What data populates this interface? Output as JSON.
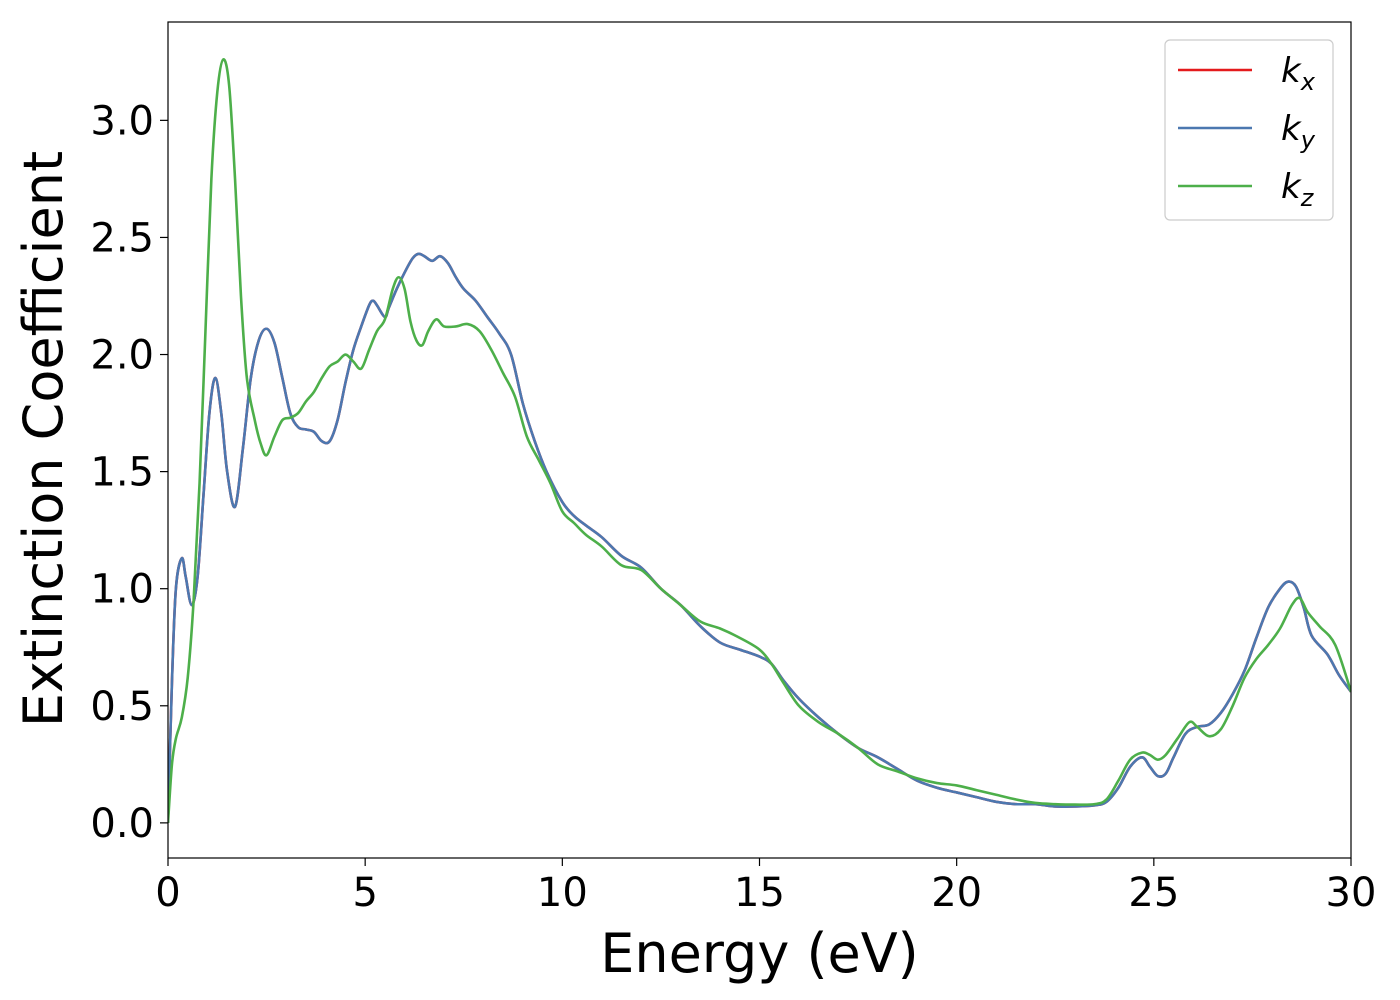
{
  "chart_data": {
    "type": "line",
    "xlabel": "Energy (eV)",
    "ylabel": "Extinction Coefficient",
    "xlim": [
      0,
      30
    ],
    "ylim": [
      -0.15,
      3.42
    ],
    "xticks": [
      0,
      5,
      10,
      15,
      20,
      25,
      30
    ],
    "xtick_labels": [
      "0",
      "5",
      "10",
      "15",
      "20",
      "25",
      "30"
    ],
    "yticks": [
      0.0,
      0.5,
      1.0,
      1.5,
      2.0,
      2.5,
      3.0
    ],
    "ytick_labels": [
      "0.0",
      "0.5",
      "1.0",
      "1.5",
      "2.0",
      "2.5",
      "3.0"
    ],
    "grid": false,
    "legend_position": "top-right",
    "series": [
      {
        "name": "k",
        "sub": "x",
        "color": "#e41a1c",
        "points": [
          [
            0,
            0
          ],
          [
            0.1,
            0.6
          ],
          [
            0.2,
            1.0
          ],
          [
            0.35,
            1.13
          ],
          [
            0.45,
            1.05
          ],
          [
            0.6,
            0.93
          ],
          [
            0.75,
            1.05
          ],
          [
            0.9,
            1.4
          ],
          [
            1.05,
            1.75
          ],
          [
            1.2,
            1.9
          ],
          [
            1.35,
            1.75
          ],
          [
            1.5,
            1.5
          ],
          [
            1.7,
            1.35
          ],
          [
            1.9,
            1.6
          ],
          [
            2.1,
            1.9
          ],
          [
            2.3,
            2.06
          ],
          [
            2.5,
            2.11
          ],
          [
            2.7,
            2.05
          ],
          [
            2.9,
            1.9
          ],
          [
            3.1,
            1.75
          ],
          [
            3.3,
            1.69
          ],
          [
            3.5,
            1.68
          ],
          [
            3.7,
            1.67
          ],
          [
            3.9,
            1.63
          ],
          [
            4.1,
            1.63
          ],
          [
            4.3,
            1.72
          ],
          [
            4.5,
            1.88
          ],
          [
            4.7,
            2.02
          ],
          [
            4.9,
            2.12
          ],
          [
            5.1,
            2.21
          ],
          [
            5.2,
            2.23
          ],
          [
            5.3,
            2.21
          ],
          [
            5.5,
            2.16
          ],
          [
            5.6,
            2.2
          ],
          [
            5.8,
            2.28
          ],
          [
            6.0,
            2.35
          ],
          [
            6.2,
            2.41
          ],
          [
            6.35,
            2.43
          ],
          [
            6.5,
            2.42
          ],
          [
            6.7,
            2.4
          ],
          [
            6.9,
            2.42
          ],
          [
            7.1,
            2.39
          ],
          [
            7.3,
            2.33
          ],
          [
            7.5,
            2.28
          ],
          [
            7.8,
            2.23
          ],
          [
            8.1,
            2.16
          ],
          [
            8.4,
            2.09
          ],
          [
            8.7,
            2.0
          ],
          [
            9.0,
            1.79
          ],
          [
            9.3,
            1.63
          ],
          [
            9.6,
            1.5
          ],
          [
            10.0,
            1.37
          ],
          [
            10.3,
            1.31
          ],
          [
            10.6,
            1.27
          ],
          [
            11.0,
            1.22
          ],
          [
            11.5,
            1.14
          ],
          [
            12.0,
            1.09
          ],
          [
            12.5,
            1.0
          ],
          [
            13.0,
            0.93
          ],
          [
            13.5,
            0.84
          ],
          [
            14.0,
            0.77
          ],
          [
            14.5,
            0.74
          ],
          [
            15.0,
            0.71
          ],
          [
            15.3,
            0.68
          ],
          [
            15.6,
            0.61
          ],
          [
            16.0,
            0.53
          ],
          [
            16.5,
            0.45
          ],
          [
            17.0,
            0.38
          ],
          [
            17.5,
            0.32
          ],
          [
            18.0,
            0.28
          ],
          [
            18.5,
            0.23
          ],
          [
            19.0,
            0.18
          ],
          [
            19.5,
            0.15
          ],
          [
            20.0,
            0.13
          ],
          [
            20.5,
            0.11
          ],
          [
            21.0,
            0.09
          ],
          [
            21.5,
            0.08
          ],
          [
            22.0,
            0.08
          ],
          [
            22.5,
            0.07
          ],
          [
            23.0,
            0.07
          ],
          [
            23.5,
            0.075
          ],
          [
            23.8,
            0.09
          ],
          [
            24.1,
            0.15
          ],
          [
            24.4,
            0.24
          ],
          [
            24.7,
            0.28
          ],
          [
            24.9,
            0.24
          ],
          [
            25.1,
            0.2
          ],
          [
            25.3,
            0.21
          ],
          [
            25.5,
            0.28
          ],
          [
            25.8,
            0.38
          ],
          [
            26.1,
            0.41
          ],
          [
            26.4,
            0.42
          ],
          [
            26.7,
            0.47
          ],
          [
            27.0,
            0.55
          ],
          [
            27.3,
            0.65
          ],
          [
            27.6,
            0.79
          ],
          [
            27.9,
            0.92
          ],
          [
            28.2,
            1.0
          ],
          [
            28.4,
            1.03
          ],
          [
            28.6,
            1.01
          ],
          [
            28.8,
            0.92
          ],
          [
            29.0,
            0.8
          ],
          [
            29.4,
            0.72
          ],
          [
            29.7,
            0.63
          ],
          [
            30.0,
            0.56
          ]
        ]
      },
      {
        "name": "k",
        "sub": "y",
        "color": "#4c78b0",
        "points": [
          [
            0,
            0
          ],
          [
            0.1,
            0.6
          ],
          [
            0.2,
            1.0
          ],
          [
            0.35,
            1.13
          ],
          [
            0.45,
            1.05
          ],
          [
            0.6,
            0.93
          ],
          [
            0.75,
            1.05
          ],
          [
            0.9,
            1.4
          ],
          [
            1.05,
            1.75
          ],
          [
            1.2,
            1.9
          ],
          [
            1.35,
            1.75
          ],
          [
            1.5,
            1.5
          ],
          [
            1.7,
            1.35
          ],
          [
            1.9,
            1.6
          ],
          [
            2.1,
            1.9
          ],
          [
            2.3,
            2.06
          ],
          [
            2.5,
            2.11
          ],
          [
            2.7,
            2.05
          ],
          [
            2.9,
            1.9
          ],
          [
            3.1,
            1.75
          ],
          [
            3.3,
            1.69
          ],
          [
            3.5,
            1.68
          ],
          [
            3.7,
            1.67
          ],
          [
            3.9,
            1.63
          ],
          [
            4.1,
            1.63
          ],
          [
            4.3,
            1.72
          ],
          [
            4.5,
            1.88
          ],
          [
            4.7,
            2.02
          ],
          [
            4.9,
            2.12
          ],
          [
            5.1,
            2.21
          ],
          [
            5.2,
            2.23
          ],
          [
            5.3,
            2.21
          ],
          [
            5.5,
            2.16
          ],
          [
            5.6,
            2.2
          ],
          [
            5.8,
            2.28
          ],
          [
            6.0,
            2.35
          ],
          [
            6.2,
            2.41
          ],
          [
            6.35,
            2.43
          ],
          [
            6.5,
            2.42
          ],
          [
            6.7,
            2.4
          ],
          [
            6.9,
            2.42
          ],
          [
            7.1,
            2.39
          ],
          [
            7.3,
            2.33
          ],
          [
            7.5,
            2.28
          ],
          [
            7.8,
            2.23
          ],
          [
            8.1,
            2.16
          ],
          [
            8.4,
            2.09
          ],
          [
            8.7,
            2.0
          ],
          [
            9.0,
            1.79
          ],
          [
            9.3,
            1.63
          ],
          [
            9.6,
            1.5
          ],
          [
            10.0,
            1.37
          ],
          [
            10.3,
            1.31
          ],
          [
            10.6,
            1.27
          ],
          [
            11.0,
            1.22
          ],
          [
            11.5,
            1.14
          ],
          [
            12.0,
            1.09
          ],
          [
            12.5,
            1.0
          ],
          [
            13.0,
            0.93
          ],
          [
            13.5,
            0.84
          ],
          [
            14.0,
            0.77
          ],
          [
            14.5,
            0.74
          ],
          [
            15.0,
            0.71
          ],
          [
            15.3,
            0.68
          ],
          [
            15.6,
            0.61
          ],
          [
            16.0,
            0.53
          ],
          [
            16.5,
            0.45
          ],
          [
            17.0,
            0.38
          ],
          [
            17.5,
            0.32
          ],
          [
            18.0,
            0.28
          ],
          [
            18.5,
            0.23
          ],
          [
            19.0,
            0.18
          ],
          [
            19.5,
            0.15
          ],
          [
            20.0,
            0.13
          ],
          [
            20.5,
            0.11
          ],
          [
            21.0,
            0.09
          ],
          [
            21.5,
            0.08
          ],
          [
            22.0,
            0.08
          ],
          [
            22.5,
            0.07
          ],
          [
            23.0,
            0.07
          ],
          [
            23.5,
            0.075
          ],
          [
            23.8,
            0.09
          ],
          [
            24.1,
            0.15
          ],
          [
            24.4,
            0.24
          ],
          [
            24.7,
            0.28
          ],
          [
            24.9,
            0.24
          ],
          [
            25.1,
            0.2
          ],
          [
            25.3,
            0.21
          ],
          [
            25.5,
            0.28
          ],
          [
            25.8,
            0.38
          ],
          [
            26.1,
            0.41
          ],
          [
            26.4,
            0.42
          ],
          [
            26.7,
            0.47
          ],
          [
            27.0,
            0.55
          ],
          [
            27.3,
            0.65
          ],
          [
            27.6,
            0.79
          ],
          [
            27.9,
            0.92
          ],
          [
            28.2,
            1.0
          ],
          [
            28.4,
            1.03
          ],
          [
            28.6,
            1.01
          ],
          [
            28.8,
            0.92
          ],
          [
            29.0,
            0.8
          ],
          [
            29.4,
            0.72
          ],
          [
            29.7,
            0.63
          ],
          [
            30.0,
            0.56
          ]
        ]
      },
      {
        "name": "k",
        "sub": "z",
        "color": "#4daf4a",
        "points": [
          [
            0,
            0
          ],
          [
            0.1,
            0.25
          ],
          [
            0.2,
            0.36
          ],
          [
            0.35,
            0.45
          ],
          [
            0.5,
            0.62
          ],
          [
            0.65,
            0.95
          ],
          [
            0.8,
            1.45
          ],
          [
            0.95,
            2.1
          ],
          [
            1.1,
            2.75
          ],
          [
            1.25,
            3.12
          ],
          [
            1.4,
            3.26
          ],
          [
            1.55,
            3.15
          ],
          [
            1.7,
            2.75
          ],
          [
            1.85,
            2.25
          ],
          [
            2.0,
            1.9
          ],
          [
            2.2,
            1.72
          ],
          [
            2.35,
            1.62
          ],
          [
            2.5,
            1.57
          ],
          [
            2.7,
            1.65
          ],
          [
            2.9,
            1.72
          ],
          [
            3.1,
            1.73
          ],
          [
            3.3,
            1.75
          ],
          [
            3.5,
            1.8
          ],
          [
            3.7,
            1.84
          ],
          [
            3.9,
            1.9
          ],
          [
            4.1,
            1.95
          ],
          [
            4.3,
            1.97
          ],
          [
            4.5,
            2.0
          ],
          [
            4.7,
            1.97
          ],
          [
            4.9,
            1.94
          ],
          [
            5.1,
            2.02
          ],
          [
            5.3,
            2.1
          ],
          [
            5.5,
            2.15
          ],
          [
            5.7,
            2.28
          ],
          [
            5.85,
            2.33
          ],
          [
            6.0,
            2.28
          ],
          [
            6.15,
            2.14
          ],
          [
            6.3,
            2.06
          ],
          [
            6.45,
            2.04
          ],
          [
            6.6,
            2.1
          ],
          [
            6.8,
            2.15
          ],
          [
            7.0,
            2.12
          ],
          [
            7.3,
            2.12
          ],
          [
            7.6,
            2.13
          ],
          [
            7.9,
            2.1
          ],
          [
            8.2,
            2.02
          ],
          [
            8.5,
            1.92
          ],
          [
            8.8,
            1.82
          ],
          [
            9.1,
            1.65
          ],
          [
            9.4,
            1.55
          ],
          [
            9.7,
            1.45
          ],
          [
            10.0,
            1.33
          ],
          [
            10.3,
            1.28
          ],
          [
            10.6,
            1.23
          ],
          [
            11.0,
            1.18
          ],
          [
            11.5,
            1.1
          ],
          [
            12.0,
            1.08
          ],
          [
            12.5,
            1.0
          ],
          [
            13.0,
            0.93
          ],
          [
            13.5,
            0.86
          ],
          [
            14.0,
            0.83
          ],
          [
            14.5,
            0.79
          ],
          [
            15.0,
            0.74
          ],
          [
            15.3,
            0.68
          ],
          [
            15.6,
            0.6
          ],
          [
            16.0,
            0.5
          ],
          [
            16.5,
            0.43
          ],
          [
            17.0,
            0.38
          ],
          [
            17.5,
            0.32
          ],
          [
            18.0,
            0.25
          ],
          [
            18.5,
            0.22
          ],
          [
            19.0,
            0.19
          ],
          [
            19.5,
            0.17
          ],
          [
            20.0,
            0.16
          ],
          [
            20.5,
            0.14
          ],
          [
            21.0,
            0.12
          ],
          [
            21.5,
            0.1
          ],
          [
            22.0,
            0.085
          ],
          [
            22.5,
            0.08
          ],
          [
            23.0,
            0.078
          ],
          [
            23.5,
            0.08
          ],
          [
            23.8,
            0.1
          ],
          [
            24.1,
            0.18
          ],
          [
            24.4,
            0.27
          ],
          [
            24.7,
            0.3
          ],
          [
            24.9,
            0.29
          ],
          [
            25.1,
            0.27
          ],
          [
            25.3,
            0.29
          ],
          [
            25.6,
            0.36
          ],
          [
            25.9,
            0.43
          ],
          [
            26.1,
            0.41
          ],
          [
            26.4,
            0.37
          ],
          [
            26.7,
            0.4
          ],
          [
            27.0,
            0.5
          ],
          [
            27.3,
            0.62
          ],
          [
            27.6,
            0.7
          ],
          [
            27.9,
            0.76
          ],
          [
            28.2,
            0.83
          ],
          [
            28.5,
            0.93
          ],
          [
            28.7,
            0.96
          ],
          [
            28.9,
            0.9
          ],
          [
            29.2,
            0.84
          ],
          [
            29.6,
            0.76
          ],
          [
            30.0,
            0.56
          ]
        ]
      }
    ]
  }
}
